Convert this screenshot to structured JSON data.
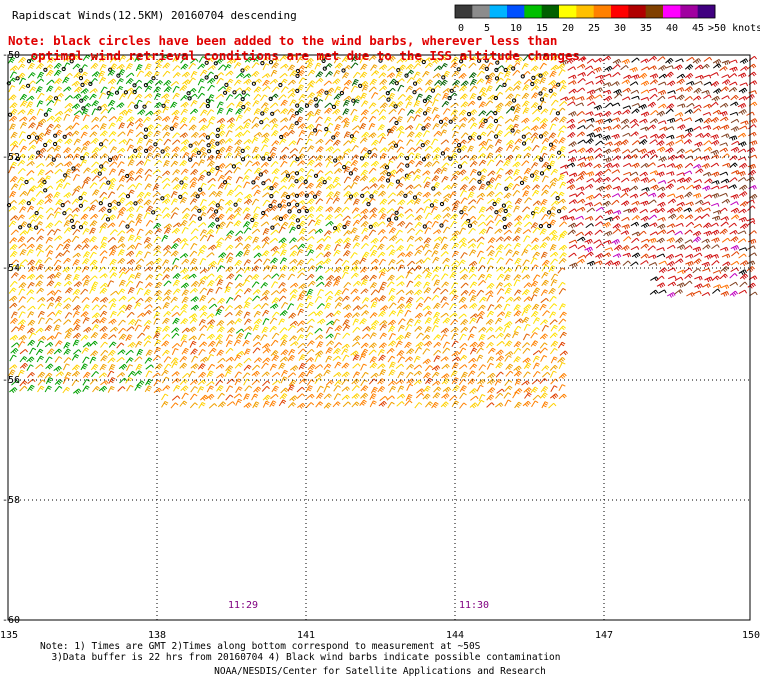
{
  "title": "Rapidscat Winds(12.5KM) 20160704 descending",
  "note": {
    "line1": "Note: black circles have been added to the wind barbs, wherever less than",
    "line2": "optimal wind retrieval conditions are met due to the ISS altitude changes."
  },
  "colorbar": {
    "labels": [
      "0",
      "5",
      "10",
      "15",
      "20",
      "25",
      "30",
      "35",
      "40",
      "45",
      ">50 knots"
    ],
    "colors": [
      "#3a3a3a",
      "#8c8c8c",
      "#00b4ff",
      "#0050ff",
      "#00c000",
      "#006000",
      "#ffff00",
      "#ffc000",
      "#ff8000",
      "#ff0000",
      "#b00000",
      "#804000",
      "#ff00ff",
      "#a000a0",
      "#400080"
    ]
  },
  "axes": {
    "lon_labels": [
      "135",
      "138",
      "141",
      "144",
      "147",
      "150"
    ],
    "lat_labels": [
      "-50",
      "-52",
      "-54",
      "-56",
      "-58",
      "-60"
    ]
  },
  "times": [
    "11:29",
    "11:30"
  ],
  "footnotes": {
    "line1": "Note: 1) Times are GMT 2)Times along bottom correspond to measurement at ~50S",
    "line2": "3)Data buffer is 22 hrs from 20160704 4) Black wind barbs indicate possible contamination"
  },
  "credit": "NOAA/NESDIS/Center for Satellite Applications and Research"
}
